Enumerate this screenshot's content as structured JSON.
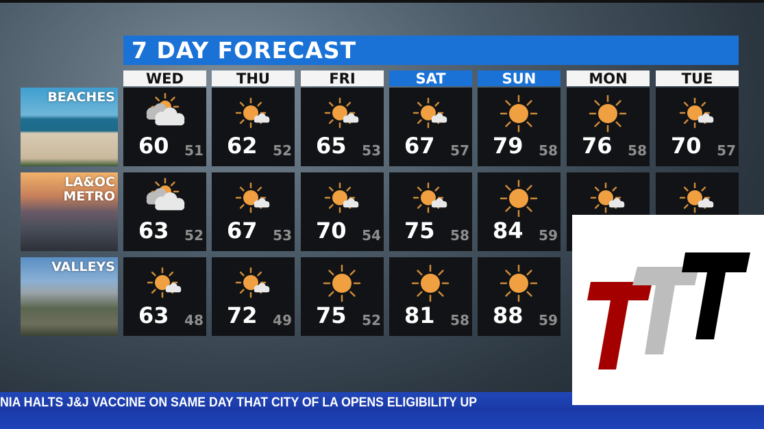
{
  "title": "7 DAY FORECAST",
  "colors": {
    "accent_blue": "#1a72d6",
    "sun": "#f0a040",
    "cloud": "#e8e8e8",
    "cell_bg": "#111316",
    "low_temp": "#8e8e8e",
    "logo_red": "#a50000",
    "logo_gray": "#bdbdbd",
    "logo_black": "#000000"
  },
  "days": [
    {
      "label": "WED",
      "weekend": false
    },
    {
      "label": "THU",
      "weekend": false
    },
    {
      "label": "FRI",
      "weekend": false
    },
    {
      "label": "SAT",
      "weekend": true
    },
    {
      "label": "SUN",
      "weekend": true
    },
    {
      "label": "MON",
      "weekend": false
    },
    {
      "label": "TUE",
      "weekend": false
    }
  ],
  "regions": [
    {
      "label": "BEACHES",
      "forecast": [
        {
          "icon": "mostly-cloudy-icon",
          "hi": "60",
          "lo": "51"
        },
        {
          "icon": "sun-small-cloud-icon",
          "hi": "62",
          "lo": "52"
        },
        {
          "icon": "sun-small-cloud-icon",
          "hi": "65",
          "lo": "53"
        },
        {
          "icon": "sun-small-cloud-icon",
          "hi": "67",
          "lo": "57"
        },
        {
          "icon": "sunny-icon",
          "hi": "79",
          "lo": "58"
        },
        {
          "icon": "sunny-icon",
          "hi": "76",
          "lo": "58"
        },
        {
          "icon": "sun-small-cloud-icon",
          "hi": "70",
          "lo": "57"
        }
      ]
    },
    {
      "label": "LA&OC\nMETRO",
      "forecast": [
        {
          "icon": "mostly-cloudy-icon",
          "hi": "63",
          "lo": "52"
        },
        {
          "icon": "sun-small-cloud-icon",
          "hi": "67",
          "lo": "53"
        },
        {
          "icon": "sun-small-cloud-icon",
          "hi": "70",
          "lo": "54"
        },
        {
          "icon": "sun-small-cloud-icon",
          "hi": "75",
          "lo": "58"
        },
        {
          "icon": "sunny-icon",
          "hi": "84",
          "lo": "59"
        },
        {
          "icon": "sun-small-cloud-icon"
        },
        {
          "icon": "sun-small-cloud-icon"
        }
      ]
    },
    {
      "label": "VALLEYS",
      "forecast": [
        {
          "icon": "sun-small-cloud-icon",
          "hi": "63",
          "lo": "48"
        },
        {
          "icon": "sun-small-cloud-icon",
          "hi": "72",
          "lo": "49"
        },
        {
          "icon": "sunny-icon",
          "hi": "75",
          "lo": "52"
        },
        {
          "icon": "sunny-icon",
          "hi": "81",
          "lo": "58"
        },
        {
          "icon": "sunny-icon",
          "hi": "88",
          "lo": "59"
        }
      ]
    }
  ],
  "ticker": {
    "text": "NIA HALTS J&J VACCINE ON SAME DAY THAT CITY OF LA OPENS ELIGIBILITY UP"
  },
  "logo": {
    "name": "TTT"
  }
}
